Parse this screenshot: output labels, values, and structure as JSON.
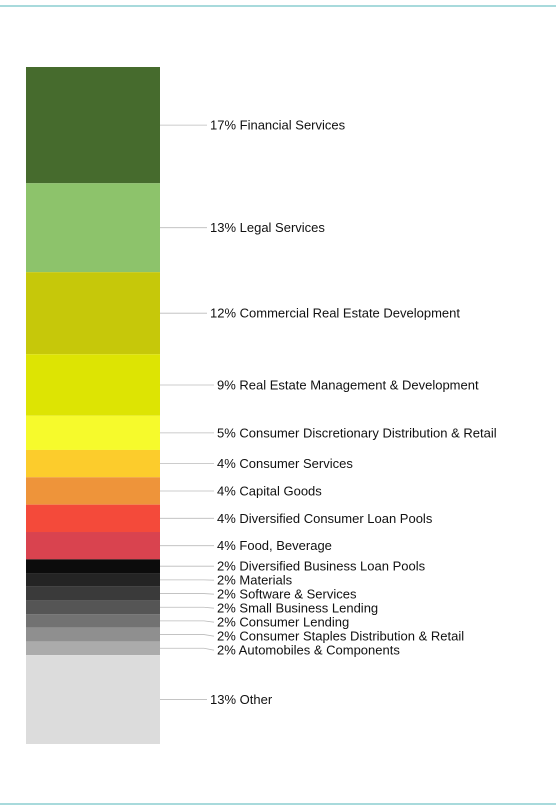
{
  "theme": {
    "rule_color": "#a8dadc",
    "leader_color": "#bbbbbb"
  },
  "chart_data": {
    "type": "bar",
    "stacked": true,
    "orientation": "vertical",
    "unit": "%",
    "legend": "right",
    "grid": false,
    "segments": [
      {
        "label": "Financial Services",
        "value_label": "17%",
        "value": 17,
        "color": "#466b2d"
      },
      {
        "label": "Legal Services",
        "value_label": "13%",
        "value": 13,
        "color": "#8dc36b"
      },
      {
        "label": "Commercial Real Estate Development",
        "value_label": "12%",
        "value": 12,
        "color": "#c6c80a"
      },
      {
        "label": "Real Estate Management & Development",
        "value_label": "9%",
        "value": 9,
        "color": "#dde403"
      },
      {
        "label": "Consumer Discretionary Distribution & Retail",
        "value_label": "5%",
        "value": 5,
        "color": "#f6fa2c"
      },
      {
        "label": "Consumer Services",
        "value_label": "4%",
        "value": 4,
        "color": "#fccc2c"
      },
      {
        "label": "Capital Goods",
        "value_label": "4%",
        "value": 4,
        "color": "#ee943a"
      },
      {
        "label": "Diversified Consumer Loan Pools",
        "value_label": "4%",
        "value": 4,
        "color": "#f44a3a"
      },
      {
        "label": "Food, Beverage",
        "value_label": "4%",
        "value": 4,
        "color": "#d9434f"
      },
      {
        "label": "Diversified Business Loan Pools",
        "value_label": "2%",
        "value": 2,
        "color": "#0c0c0c"
      },
      {
        "label": "Materials",
        "value_label": "2%",
        "value": 2,
        "color": "#242424"
      },
      {
        "label": "Software & Services",
        "value_label": "2%",
        "value": 2,
        "color": "#3a3a3a"
      },
      {
        "label": "Small Business Lending",
        "value_label": "2%",
        "value": 2,
        "color": "#555555"
      },
      {
        "label": "Consumer Lending",
        "value_label": "2%",
        "value": 2,
        "color": "#727272"
      },
      {
        "label": "Consumer Staples Distribution & Retail",
        "value_label": "2%",
        "value": 2,
        "color": "#8f8f8f"
      },
      {
        "label": "Automobiles & Components",
        "value_label": "2%",
        "value": 2,
        "color": "#ababab"
      },
      {
        "label": "Other",
        "value_label": "13%",
        "value": 13,
        "color": "#dcdcdc"
      }
    ]
  }
}
